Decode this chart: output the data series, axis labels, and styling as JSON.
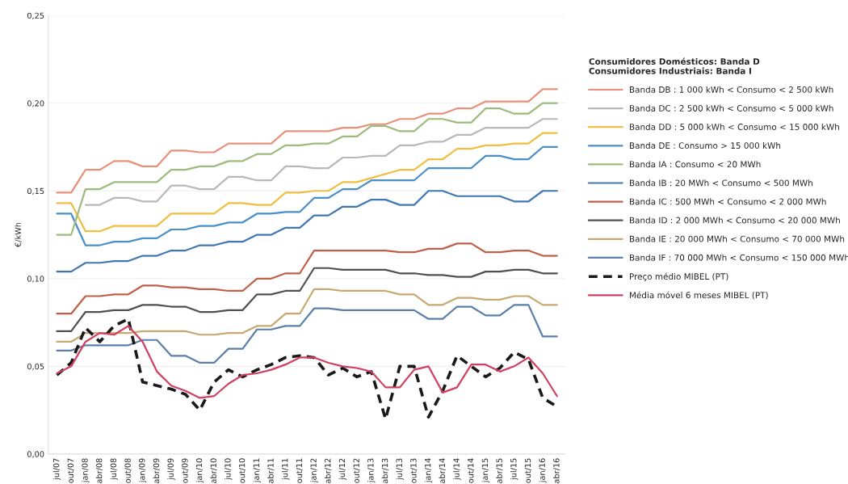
{
  "chart_data": {
    "type": "line",
    "ylabel": "€/kWh",
    "categories": [
      "jul/07",
      "out/07",
      "jan/08",
      "abr/08",
      "jul/08",
      "out/08",
      "jan/09",
      "abr/09",
      "jul/09",
      "out/09",
      "jan/10",
      "abr/10",
      "jul/10",
      "out/10",
      "jan/11",
      "abr/11",
      "jul/11",
      "out/11",
      "jan/12",
      "abr/12",
      "jul/12",
      "out/12",
      "jan/13",
      "abr/13",
      "jul/13",
      "out/13",
      "jan/14",
      "abr/14",
      "jul/14",
      "out/14",
      "jan/15",
      "abr/15",
      "jul/15",
      "out/15",
      "jan/16",
      "abr/16"
    ],
    "ylim": [
      0,
      0.25
    ],
    "yticks": [
      {
        "value": 0,
        "label": "0,00"
      },
      {
        "value": 0.05,
        "label": "0,05"
      },
      {
        "value": 0.1,
        "label": "0,10"
      },
      {
        "value": 0.15,
        "label": "0,15"
      },
      {
        "value": 0.2,
        "label": "0,20"
      },
      {
        "value": 0.25,
        "label": "0,25"
      }
    ],
    "grid": "y",
    "legend": "right",
    "legend_title": "Consumidores Domésticos: Banda D\nConsumidores Industriais: Banda I",
    "series": [
      {
        "name": "Banda DB : 1 000 kWh < Consumo < 2 500 kWh",
        "color": "#e8907a",
        "values": [
          0.149,
          0.149,
          0.162,
          0.162,
          0.167,
          0.167,
          0.164,
          0.164,
          0.173,
          0.173,
          0.172,
          0.172,
          0.177,
          0.177,
          0.177,
          0.177,
          0.184,
          0.184,
          0.184,
          0.184,
          0.186,
          0.186,
          0.188,
          0.188,
          0.191,
          0.191,
          0.194,
          0.194,
          0.197,
          0.197,
          0.201,
          0.201,
          0.201,
          0.201,
          0.208,
          0.208
        ]
      },
      {
        "name": "Banda DC : 2 500 kWh < Consumo < 5 000 kWh",
        "color": "#b8b8b8",
        "values": [
          null,
          null,
          0.142,
          0.142,
          0.146,
          0.146,
          0.144,
          0.144,
          0.153,
          0.153,
          0.151,
          0.151,
          0.158,
          0.158,
          0.156,
          0.156,
          0.164,
          0.164,
          0.163,
          0.163,
          0.169,
          0.169,
          0.17,
          0.17,
          0.176,
          0.176,
          0.178,
          0.178,
          0.182,
          0.182,
          0.186,
          0.186,
          0.186,
          0.186,
          0.191,
          0.191
        ]
      },
      {
        "name": "Banda DD : 5 000 kWh < Consumo < 15 000 kWh",
        "color": "#f0be40",
        "values": [
          0.143,
          0.143,
          0.127,
          0.127,
          0.13,
          0.13,
          0.13,
          0.13,
          0.137,
          0.137,
          0.137,
          0.137,
          0.143,
          0.143,
          0.142,
          0.142,
          0.149,
          0.149,
          0.15,
          0.15,
          0.155,
          0.155,
          null,
          null,
          0.162,
          0.162,
          0.168,
          0.168,
          0.174,
          0.174,
          0.176,
          0.176,
          0.177,
          0.177,
          0.183,
          0.183
        ]
      },
      {
        "name": "Banda DE : Consumo > 15 000 kWh",
        "color": "#4a8fc8",
        "values": [
          0.137,
          0.137,
          0.119,
          0.119,
          0.121,
          0.121,
          0.123,
          0.123,
          0.128,
          0.128,
          0.13,
          0.13,
          0.132,
          0.132,
          0.137,
          0.137,
          0.138,
          0.138,
          0.146,
          0.146,
          0.151,
          0.151,
          0.156,
          0.156,
          0.156,
          0.156,
          0.163,
          0.163,
          0.163,
          0.163,
          0.17,
          0.17,
          0.168,
          0.168,
          0.175,
          0.175
        ]
      },
      {
        "name": "Banda IA : Consumo < 20 MWh",
        "color": "#9cbb7c",
        "values": [
          0.125,
          0.125,
          0.151,
          0.151,
          0.155,
          0.155,
          0.155,
          0.155,
          0.162,
          0.162,
          0.164,
          0.164,
          0.167,
          0.167,
          0.171,
          0.171,
          0.176,
          0.176,
          0.177,
          0.177,
          0.181,
          0.181,
          0.187,
          0.187,
          0.184,
          0.184,
          0.191,
          0.191,
          0.189,
          0.189,
          0.197,
          0.197,
          0.194,
          0.194,
          0.2,
          0.2
        ]
      },
      {
        "name": "Banda IB : 20 MWh < Consumo < 500 MWh",
        "color": "#3f78b5",
        "values": [
          0.104,
          0.104,
          0.109,
          0.109,
          0.11,
          0.11,
          0.113,
          0.113,
          0.116,
          0.116,
          0.119,
          0.119,
          0.121,
          0.121,
          0.125,
          0.125,
          0.129,
          0.129,
          0.136,
          0.136,
          0.141,
          0.141,
          0.145,
          0.145,
          0.142,
          0.142,
          0.15,
          0.15,
          0.147,
          0.147,
          0.147,
          0.147,
          0.144,
          0.144,
          0.15,
          0.15
        ]
      },
      {
        "name": "Banda IC : 500 MWh < Consumo < 2 000 MWh",
        "color": "#c0604a",
        "values": [
          0.08,
          0.08,
          0.09,
          0.09,
          0.091,
          0.091,
          0.096,
          0.096,
          0.095,
          0.095,
          0.094,
          0.094,
          0.093,
          0.093,
          0.1,
          0.1,
          0.103,
          0.103,
          0.116,
          0.116,
          0.116,
          0.116,
          0.116,
          0.116,
          0.115,
          0.115,
          0.117,
          0.117,
          0.12,
          0.12,
          0.115,
          0.115,
          0.116,
          0.116,
          0.113,
          0.113
        ]
      },
      {
        "name": "Banda ID : 2 000 MWh < Consumo < 20 000 MWh",
        "color": "#505050",
        "values": [
          0.07,
          0.07,
          0.081,
          0.081,
          0.082,
          0.082,
          0.085,
          0.085,
          0.084,
          0.084,
          0.081,
          0.081,
          0.082,
          0.082,
          0.091,
          0.091,
          0.093,
          0.093,
          0.106,
          0.106,
          0.105,
          0.105,
          0.105,
          0.105,
          0.103,
          0.103,
          0.102,
          0.102,
          0.101,
          0.101,
          0.104,
          0.104,
          0.105,
          0.105,
          0.103,
          0.103
        ]
      },
      {
        "name": "Banda IE : 20 000 MWh < Consumo < 70 000 MWh",
        "color": "#c8a870",
        "values": [
          0.064,
          0.064,
          0.069,
          0.069,
          0.069,
          0.069,
          0.07,
          0.07,
          0.07,
          0.07,
          0.068,
          0.068,
          0.069,
          0.069,
          0.073,
          0.073,
          0.08,
          0.08,
          0.094,
          0.094,
          0.093,
          0.093,
          0.093,
          0.093,
          0.091,
          0.091,
          0.085,
          0.085,
          0.089,
          0.089,
          0.088,
          0.088,
          0.09,
          0.09,
          0.085,
          0.085
        ]
      },
      {
        "name": "Banda IF : 70 000 MWh < Consumo < 150 000 MWh",
        "color": "#5b7fa8",
        "values": [
          0.059,
          0.059,
          0.062,
          0.062,
          0.062,
          0.062,
          0.065,
          0.065,
          0.056,
          0.056,
          0.052,
          0.052,
          0.06,
          0.06,
          0.071,
          0.071,
          0.073,
          0.073,
          0.083,
          0.083,
          0.082,
          0.082,
          0.082,
          0.082,
          0.082,
          0.082,
          0.077,
          0.077,
          0.084,
          0.084,
          0.079,
          0.079,
          0.085,
          0.085,
          0.067,
          0.067
        ]
      },
      {
        "name": "Preço médio MIBEL (PT)",
        "color": "#1a1a1a",
        "line_style": "dashed",
        "values": [
          0.045,
          0.052,
          0.072,
          0.064,
          0.073,
          0.077,
          0.041,
          0.039,
          0.037,
          0.034,
          0.025,
          0.041,
          0.048,
          0.044,
          0.048,
          0.051,
          0.055,
          0.056,
          0.055,
          0.045,
          0.049,
          0.044,
          0.047,
          0.02,
          0.05,
          0.05,
          0.021,
          0.036,
          0.056,
          0.05,
          0.044,
          0.049,
          0.058,
          0.054,
          0.032,
          0.027
        ]
      },
      {
        "name": "Média móvel 6 meses MIBEL (PT)",
        "color": "#d04060",
        "values": [
          0.046,
          0.05,
          0.064,
          0.069,
          0.068,
          0.073,
          0.064,
          0.047,
          0.039,
          0.036,
          0.032,
          0.033,
          0.04,
          0.045,
          0.046,
          0.048,
          0.051,
          0.055,
          0.055,
          0.052,
          0.05,
          0.049,
          0.047,
          0.038,
          0.038,
          0.048,
          0.05,
          0.035,
          0.038,
          0.051,
          0.051,
          0.047,
          0.05,
          0.055,
          0.046,
          0.033
        ]
      }
    ]
  }
}
